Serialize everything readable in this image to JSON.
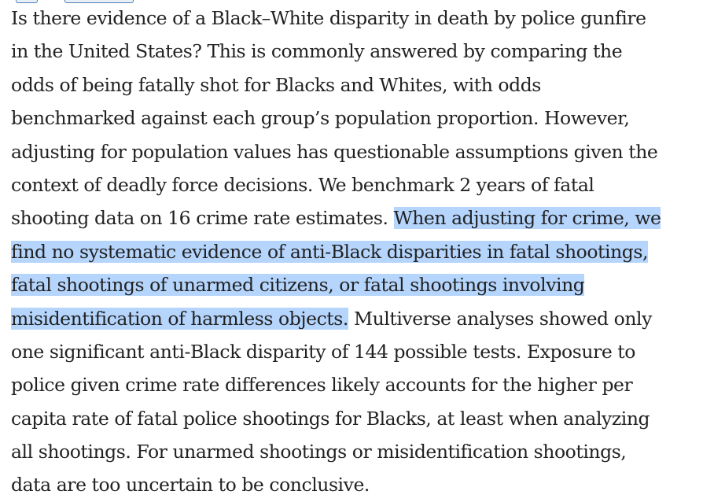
{
  "document": {
    "lines": [
      {
        "text": "Is there evidence of a Black–White disparity in death by police gunfire",
        "highlight": ""
      },
      {
        "text": "in the United States? This is commonly answered by comparing the",
        "highlight": ""
      },
      {
        "text": "odds of being fatally shot for Blacks and Whites, with odds",
        "highlight": ""
      },
      {
        "text": "benchmarked against each group’s population proportion. However,",
        "highlight": ""
      },
      {
        "text": "adjusting for population values has questionable assumptions given the",
        "highlight": ""
      },
      {
        "text": "context of deadly force decisions. We benchmark 2 years of fatal",
        "highlight": ""
      },
      {
        "text": "shooting data on 16 crime rate estimates. ",
        "highlight": "When adjusting for crime, we"
      },
      {
        "text": "",
        "highlight": "find no systematic evidence of anti-Black disparities in fatal shootings,"
      },
      {
        "text": "",
        "highlight": "fatal shootings of unarmed citizens, or fatal shootings involving"
      },
      {
        "text": "",
        "highlight": "misidentification of harmless objects.",
        "after": " Multiverse analyses showed only"
      },
      {
        "text": "one significant anti-Black disparity of 144 possible tests. Exposure to",
        "highlight": ""
      },
      {
        "text": "police given crime rate differences likely accounts for the higher per",
        "highlight": ""
      },
      {
        "text": "capita rate of fatal police shootings for Blacks, at least when analyzing",
        "highlight": ""
      },
      {
        "text": "all shootings. For unarmed shootings or misidentification shootings,",
        "highlight": ""
      },
      {
        "text": "data are too uncertain to be conclusive.",
        "highlight": ""
      }
    ],
    "highlight_color": "#b5d5fd",
    "text_color": "#222222"
  }
}
